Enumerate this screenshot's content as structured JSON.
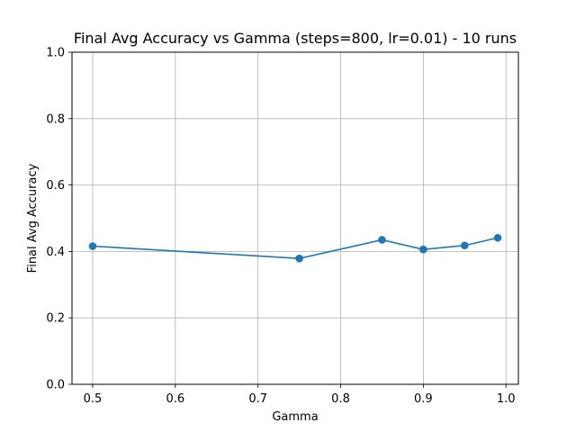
{
  "chart_data": {
    "type": "line",
    "title": "Final Avg Accuracy vs Gamma (steps=800, lr=0.01) - 10 runs",
    "xlabel": "Gamma",
    "ylabel": "Final Avg Accuracy",
    "xlim": [
      0.475,
      1.015
    ],
    "ylim": [
      0.0,
      1.0
    ],
    "xticks": [
      0.5,
      0.6,
      0.7,
      0.8,
      0.9,
      1.0
    ],
    "xtick_labels": [
      "0.5",
      "0.6",
      "0.7",
      "0.8",
      "0.9",
      "1.0"
    ],
    "yticks": [
      0.0,
      0.2,
      0.4,
      0.6,
      0.8,
      1.0
    ],
    "ytick_labels": [
      "0.0",
      "0.2",
      "0.4",
      "0.6",
      "0.8",
      "1.0"
    ],
    "grid": true,
    "legend": "none",
    "series": [
      {
        "color": "#1f77b4",
        "marker": "circle",
        "x": [
          0.5,
          0.75,
          0.85,
          0.9,
          0.95,
          0.99
        ],
        "y": [
          0.416,
          0.379,
          0.435,
          0.406,
          0.418,
          0.441
        ]
      }
    ]
  }
}
